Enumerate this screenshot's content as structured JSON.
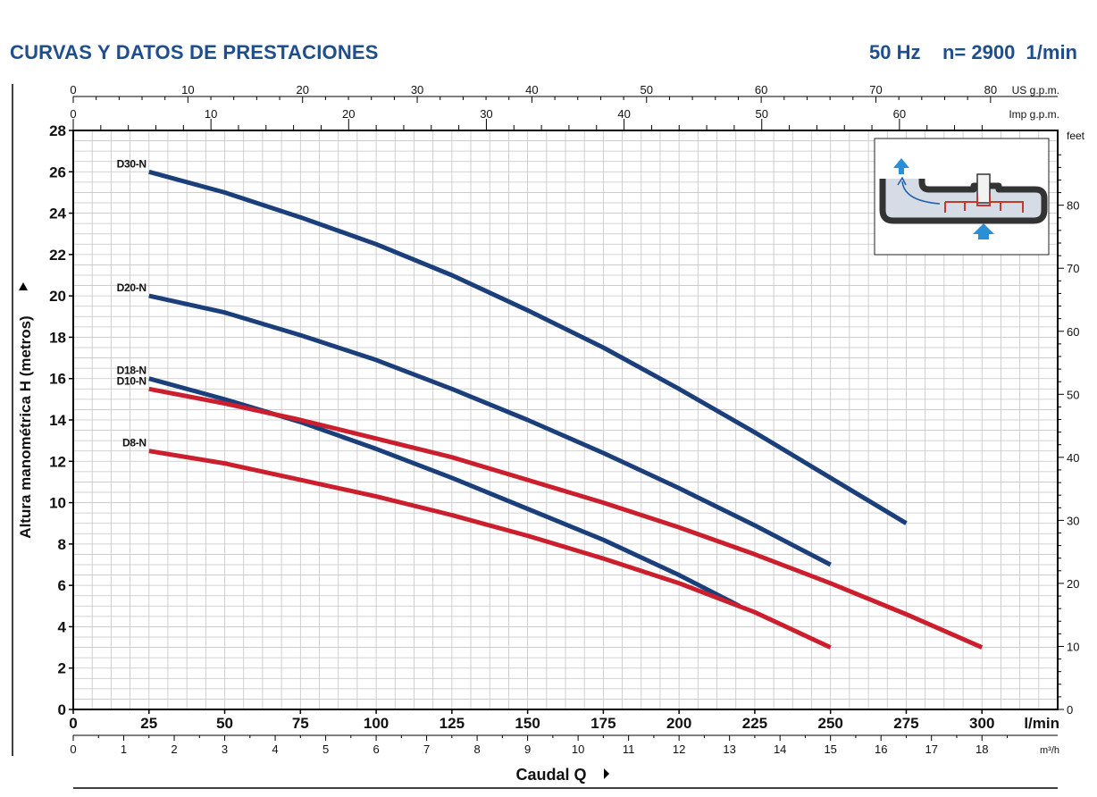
{
  "header": {
    "title": "CURVAS Y DATOS DE PRESTACIONES",
    "conditions": "50 Hz    n= 2900  1/min"
  },
  "chart_data": {
    "type": "line",
    "xlabel": "Caudal  Q",
    "ylabel": "Altura manométrica H (metros)",
    "xlim": [
      0,
      325
    ],
    "ylim": [
      0,
      28
    ],
    "x_unit": "l/min",
    "x_ticks": [
      0,
      25,
      50,
      75,
      100,
      125,
      150,
      175,
      200,
      225,
      250,
      275,
      300
    ],
    "y_ticks": [
      0,
      2,
      4,
      6,
      8,
      10,
      12,
      14,
      16,
      18,
      20,
      22,
      24,
      26,
      28
    ],
    "secondary_x_top_us": {
      "unit": "US g.p.m.",
      "ticks": [
        0,
        10,
        20,
        30,
        40,
        50,
        60,
        70,
        80
      ]
    },
    "secondary_x_top_imp": {
      "unit": "Imp g.p.m.",
      "ticks": [
        0,
        10,
        20,
        30,
        40,
        50,
        60
      ]
    },
    "secondary_x_bottom": {
      "unit": "m³/h",
      "ticks": [
        0,
        1,
        2,
        3,
        4,
        5,
        6,
        7,
        8,
        9,
        10,
        11,
        12,
        13,
        14,
        15,
        16,
        17,
        18
      ]
    },
    "secondary_y_right": {
      "unit": "feet",
      "ticks": [
        0,
        10,
        20,
        30,
        40,
        50,
        60,
        70,
        80
      ]
    },
    "grid": true,
    "series": [
      {
        "name": "D30-N",
        "color": "#1b3f7a",
        "x": [
          25,
          50,
          75,
          100,
          125,
          150,
          175,
          200,
          225,
          250,
          275
        ],
        "y": [
          26,
          25,
          23.8,
          22.5,
          21,
          19.3,
          17.5,
          15.5,
          13.4,
          11.2,
          9
        ]
      },
      {
        "name": "D20-N",
        "color": "#1b3f7a",
        "x": [
          25,
          50,
          75,
          100,
          125,
          150,
          175,
          200,
          225,
          250
        ],
        "y": [
          20,
          19.2,
          18.1,
          16.9,
          15.5,
          14,
          12.4,
          10.7,
          8.9,
          7
        ]
      },
      {
        "name": "D18-N",
        "color": "#1b3f7a",
        "x": [
          25,
          50,
          75,
          100,
          125,
          150,
          175,
          200,
          220
        ],
        "y": [
          16,
          15,
          13.9,
          12.6,
          11.2,
          9.7,
          8.2,
          6.5,
          5
        ]
      },
      {
        "name": "D10-N",
        "color": "#cc1f2d",
        "x": [
          25,
          50,
          75,
          100,
          125,
          150,
          175,
          200,
          225,
          250,
          275,
          300
        ],
        "y": [
          15.5,
          14.8,
          14,
          13.1,
          12.2,
          11.1,
          10,
          8.8,
          7.5,
          6.1,
          4.6,
          3
        ]
      },
      {
        "name": "D8-N",
        "color": "#cc1f2d",
        "x": [
          25,
          50,
          75,
          100,
          125,
          150,
          175,
          200,
          225,
          250
        ],
        "y": [
          12.5,
          11.9,
          11.1,
          10.3,
          9.4,
          8.4,
          7.3,
          6.1,
          4.7,
          3
        ]
      }
    ]
  }
}
